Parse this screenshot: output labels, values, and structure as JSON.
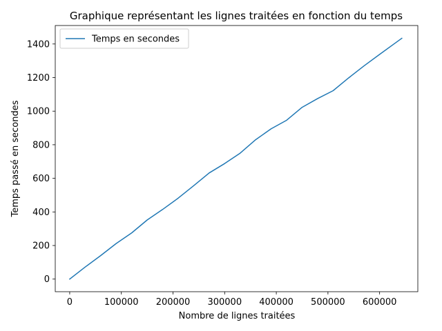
{
  "chart_data": {
    "type": "line",
    "title": "Graphique représentant les lignes traitées en fonction du temps",
    "xlabel": "Nombre de lignes traitées",
    "ylabel": "Temps passé en secondes",
    "xlim": [
      -28000,
      674000
    ],
    "ylim": [
      -75,
      1510
    ],
    "xticks": [
      0,
      100000,
      200000,
      300000,
      400000,
      500000,
      600000
    ],
    "xtick_labels": [
      "0",
      "100000",
      "200000",
      "300000",
      "400000",
      "500000",
      "600000"
    ],
    "yticks": [
      0,
      200,
      400,
      600,
      800,
      1000,
      1200,
      1400
    ],
    "ytick_labels": [
      "0",
      "200",
      "400",
      "600",
      "800",
      "1000",
      "1200",
      "1400"
    ],
    "grid": false,
    "legend_position": "top-left",
    "series": [
      {
        "name": "Temps en secondes",
        "color": "#1f77b4",
        "x": [
          0,
          30000,
          60000,
          90000,
          120000,
          150000,
          180000,
          210000,
          240000,
          270000,
          300000,
          330000,
          360000,
          390000,
          420000,
          450000,
          480000,
          510000,
          540000,
          570000,
          600000,
          630000,
          643000
        ],
        "y": [
          0,
          72,
          140,
          212,
          275,
          352,
          415,
          482,
          556,
          632,
          688,
          750,
          830,
          895,
          946,
          1023,
          1075,
          1122,
          1198,
          1270,
          1338,
          1405,
          1434
        ]
      }
    ]
  }
}
